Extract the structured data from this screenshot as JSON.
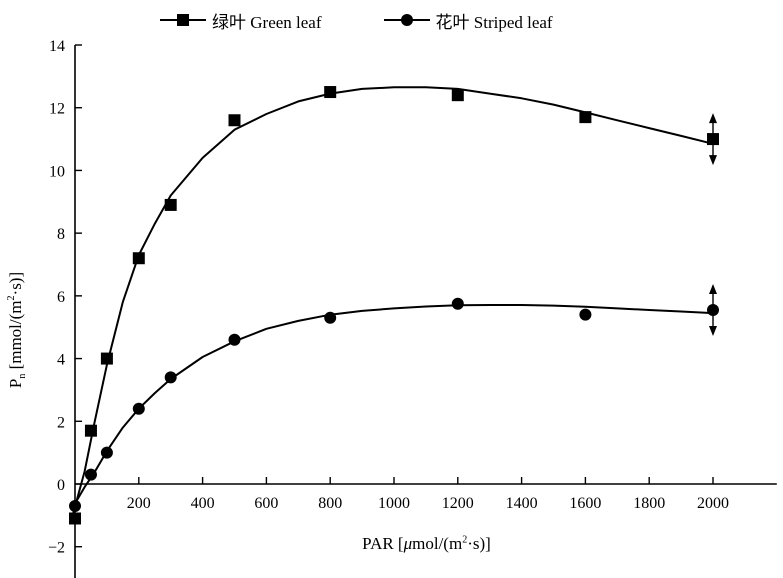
{
  "legend": {
    "green_label": "绿叶 Green leaf",
    "striped_label": "花叶 Striped leaf"
  },
  "axes": {
    "ylabel_main": "P",
    "ylabel_sub": "n",
    "ylabel_rest": " [mmol/(m",
    "ylabel_sup": "2",
    "ylabel_end": "·s)]",
    "xlabel_main": "PAR [",
    "xlabel_mu": "μ",
    "xlabel_rest": "mol/(m",
    "xlabel_sup": "2",
    "xlabel_end": "·s)]"
  },
  "chart_data": {
    "type": "scatter",
    "title": "",
    "xlabel": "PAR [μmol/(m²·s)]",
    "ylabel": "Pn [mmol/(m²·s)]",
    "xlim": [
      0,
      2200
    ],
    "ylim": [
      -3,
      14
    ],
    "xticks": [
      200,
      400,
      600,
      800,
      1000,
      1200,
      1400,
      1600,
      1800,
      2000
    ],
    "yticks": [
      -2,
      0,
      2,
      4,
      6,
      8,
      10,
      12,
      14
    ],
    "legend_position": "top",
    "series": [
      {
        "name": "绿叶 Green leaf",
        "marker": "square",
        "x": [
          0,
          50,
          100,
          200,
          300,
          500,
          800,
          1200,
          1600,
          2000
        ],
        "y": [
          -1.1,
          1.7,
          4.0,
          7.2,
          8.9,
          11.6,
          12.5,
          12.4,
          11.7,
          11.0
        ],
        "fit_curve": [
          [
            -10,
            -1.1
          ],
          [
            30,
            0.4
          ],
          [
            60,
            1.9
          ],
          [
            100,
            3.8
          ],
          [
            150,
            5.8
          ],
          [
            200,
            7.3
          ],
          [
            250,
            8.3
          ],
          [
            300,
            9.2
          ],
          [
            400,
            10.4
          ],
          [
            500,
            11.3
          ],
          [
            600,
            11.8
          ],
          [
            700,
            12.2
          ],
          [
            800,
            12.45
          ],
          [
            900,
            12.6
          ],
          [
            1000,
            12.65
          ],
          [
            1100,
            12.65
          ],
          [
            1200,
            12.6
          ],
          [
            1300,
            12.45
          ],
          [
            1400,
            12.3
          ],
          [
            1500,
            12.1
          ],
          [
            1600,
            11.85
          ],
          [
            1700,
            11.6
          ],
          [
            1800,
            11.35
          ],
          [
            1900,
            11.1
          ],
          [
            2000,
            10.85
          ]
        ],
        "error_at": 2000
      },
      {
        "name": "花叶 Striped leaf",
        "marker": "circle",
        "x": [
          0,
          50,
          100,
          200,
          300,
          500,
          800,
          1200,
          1600,
          2000
        ],
        "y": [
          -0.7,
          0.3,
          1.0,
          2.4,
          3.4,
          4.6,
          5.3,
          5.75,
          5.4,
          5.55
        ],
        "fit_curve": [
          [
            -10,
            -0.8
          ],
          [
            30,
            -0.1
          ],
          [
            60,
            0.35
          ],
          [
            100,
            1.05
          ],
          [
            150,
            1.8
          ],
          [
            200,
            2.4
          ],
          [
            250,
            2.9
          ],
          [
            300,
            3.35
          ],
          [
            400,
            4.05
          ],
          [
            500,
            4.55
          ],
          [
            600,
            4.95
          ],
          [
            700,
            5.2
          ],
          [
            800,
            5.4
          ],
          [
            900,
            5.52
          ],
          [
            1000,
            5.6
          ],
          [
            1100,
            5.66
          ],
          [
            1200,
            5.7
          ],
          [
            1300,
            5.71
          ],
          [
            1400,
            5.71
          ],
          [
            1500,
            5.69
          ],
          [
            1600,
            5.65
          ],
          [
            1700,
            5.6
          ],
          [
            1800,
            5.55
          ],
          [
            1900,
            5.5
          ],
          [
            2000,
            5.45
          ]
        ],
        "error_at": 2000
      }
    ]
  }
}
